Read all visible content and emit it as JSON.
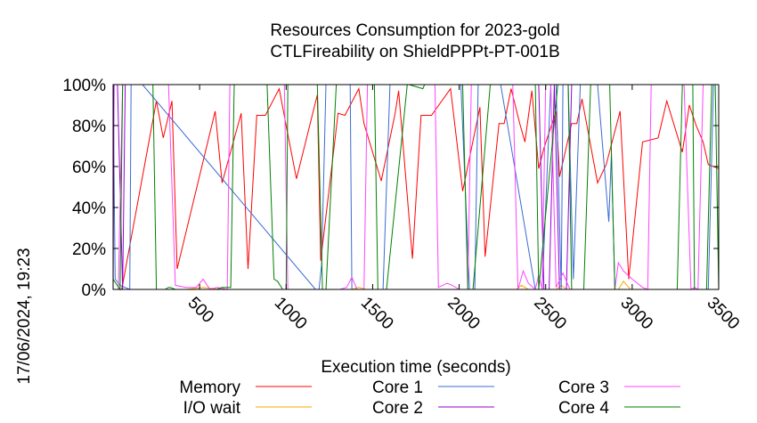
{
  "chart_data": {
    "type": "line",
    "title_lines": [
      "Resources Consumption for 2023-gold",
      "CTLFireability on ShieldPPPt-PT-001B"
    ],
    "xlabel": "Execution time (seconds)",
    "ylabel": "",
    "timestamp": "17/06/2024, 19:23",
    "xlim": [
      0,
      3500
    ],
    "ylim": [
      0,
      100
    ],
    "x_ticks": [
      500,
      1000,
      1500,
      2000,
      2500,
      3000,
      3500
    ],
    "y_ticks": [
      0,
      20,
      40,
      60,
      80,
      100
    ],
    "y_tick_labels": [
      "0%",
      "20%",
      "40%",
      "60%",
      "80%",
      "100%"
    ],
    "grid": false,
    "legend_position": "bottom",
    "series": [
      {
        "name": "Memory",
        "color": "#ff0000",
        "x": [
          0,
          50,
          250,
          290,
          340,
          370,
          590,
          630,
          740,
          780,
          830,
          880,
          960,
          1000,
          1060,
          1180,
          1200,
          1300,
          1340,
          1420,
          1450,
          1550,
          1630,
          1650,
          1730,
          1780,
          1840,
          1950,
          2020,
          2120,
          2150,
          2230,
          2260,
          2300,
          2350,
          2380,
          2420,
          2460,
          2490,
          2560,
          2580,
          2650,
          2680,
          2710,
          2800,
          2850,
          2930,
          2980,
          3060,
          3150,
          3200,
          3290,
          3330,
          3370,
          3410,
          3440,
          3500
        ],
        "y": [
          0,
          0,
          92,
          74,
          92,
          10,
          87,
          52,
          86,
          10,
          85,
          85,
          98,
          80,
          54,
          95,
          14,
          86,
          85,
          98,
          81,
          53,
          86,
          97,
          15,
          85,
          85,
          98,
          48,
          89,
          16,
          81,
          81,
          98,
          81,
          72,
          97,
          59,
          69,
          87,
          55,
          81,
          81,
          93,
          52,
          61,
          87,
          5,
          72,
          74,
          92,
          67,
          90,
          80,
          72,
          61,
          59
        ]
      },
      {
        "name": "I/O wait",
        "color": "#ffa500",
        "x": [
          0,
          200,
          420,
          520,
          620,
          820,
          1160,
          1380,
          1420,
          1460,
          1800,
          2330,
          2360,
          2400,
          2560,
          2590,
          2620,
          2920,
          2950,
          2990,
          3500
        ],
        "y": [
          0,
          0,
          0,
          1,
          0,
          0,
          0,
          0,
          1,
          0,
          0,
          0,
          2,
          0,
          0,
          2,
          0,
          0,
          4,
          0,
          0
        ]
      },
      {
        "name": "Core 1",
        "color": "#3a6bd4",
        "x": [
          0,
          12,
          40,
          96,
          104,
          170,
          1170,
          1190,
          1205,
          1230,
          1370,
          1380,
          1560,
          1600,
          2010,
          2060,
          2090,
          2110,
          2240,
          2440,
          2480,
          2530,
          2560,
          2590,
          2600,
          2630,
          2660,
          2700,
          2800,
          2865,
          2880,
          2900,
          2930,
          3350,
          3440,
          3470,
          3500
        ],
        "y": [
          100,
          5,
          2,
          0,
          100,
          100,
          0,
          0,
          12,
          100,
          100,
          0,
          0,
          100,
          100,
          0,
          0,
          100,
          100,
          0,
          0,
          100,
          100,
          0,
          100,
          100,
          5,
          100,
          100,
          33,
          66,
          0,
          0,
          0,
          0,
          100,
          100
        ]
      },
      {
        "name": "Core 2",
        "color": "#9400d3",
        "x": [
          0,
          5,
          25,
          55,
          70,
          2460,
          2490,
          2520,
          2550,
          2580,
          2620,
          2650,
          2680,
          2860,
          2930,
          3500
        ],
        "y": [
          0,
          100,
          100,
          0,
          100,
          100,
          0,
          0,
          100,
          0,
          0,
          100,
          100,
          100,
          100,
          100
        ]
      },
      {
        "name": "Core 3",
        "color": "#ff44ff",
        "x": [
          0,
          30,
          55,
          70,
          320,
          360,
          420,
          480,
          520,
          560,
          600,
          660,
          675,
          700,
          960,
          990,
          1010,
          1310,
          1350,
          1380,
          1410,
          1450,
          1470,
          1490,
          1560,
          1600,
          1860,
          1880,
          1930,
          1960,
          2000,
          2050,
          2070,
          2310,
          2340,
          2370,
          2400,
          2440,
          2460,
          2480,
          2500,
          2530,
          2560,
          2600,
          2640,
          2900,
          2920,
          2950,
          3000,
          3060,
          3090,
          3110,
          3300,
          3340,
          3360,
          3380,
          3410,
          3440,
          3500
        ],
        "y": [
          0,
          0,
          100,
          100,
          100,
          2,
          1,
          1,
          5,
          0,
          1,
          0,
          100,
          100,
          100,
          100,
          0,
          0,
          1,
          6,
          0,
          0,
          100,
          100,
          100,
          100,
          100,
          1,
          3,
          2,
          0,
          0,
          100,
          100,
          0,
          9,
          3,
          0,
          7,
          0,
          100,
          100,
          1,
          8,
          0,
          0,
          13,
          9,
          5,
          1,
          0,
          100,
          100,
          0,
          1,
          0,
          100,
          100,
          100
        ]
      },
      {
        "name": "Core 4",
        "color": "#008000",
        "x": [
          0,
          40,
          55,
          70,
          230,
          250,
          300,
          320,
          330,
          360,
          600,
          630,
          680,
          700,
          890,
          930,
          950,
          980,
          1000,
          1010,
          1020,
          1180,
          1210,
          1230,
          1290,
          1460,
          1510,
          1530,
          1580,
          1700,
          1710,
          1790,
          1800,
          1820,
          2020,
          2050,
          2080,
          2180,
          2210,
          2240,
          2440,
          2460,
          2570,
          2600,
          2630,
          2650,
          2720,
          2760,
          2870,
          2900,
          2910,
          2930,
          3180,
          3200,
          3260,
          3290,
          3350,
          3360,
          3380,
          3410,
          3430,
          3460,
          3480,
          3500
        ],
        "y": [
          5,
          0,
          100,
          100,
          100,
          0,
          0,
          1,
          1,
          0,
          0,
          1,
          1,
          100,
          100,
          5,
          4,
          0,
          0,
          100,
          100,
          100,
          0,
          0,
          100,
          100,
          100,
          0,
          0,
          100,
          100,
          98,
          100,
          100,
          100,
          0,
          0,
          100,
          100,
          100,
          100,
          0,
          100,
          100,
          100,
          0,
          0,
          100,
          100,
          0,
          0,
          0,
          0,
          0,
          0,
          100,
          100,
          0,
          0,
          0,
          0,
          100,
          100,
          0
        ]
      }
    ]
  }
}
